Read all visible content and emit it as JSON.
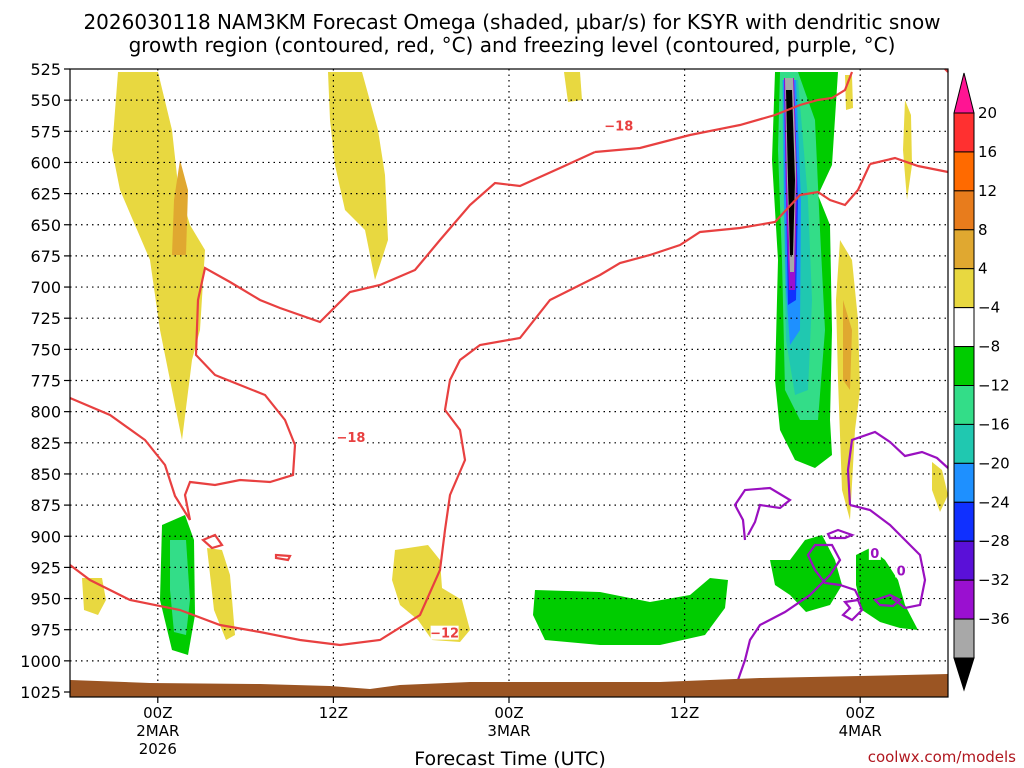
{
  "chart_data": {
    "type": "heatmap",
    "title_line1": "2026030118 NAM3KM Forecast Omega (shaded, µbar/s) for KSYR with dendritic snow",
    "title_line2": "growth region (contoured, red, °C) and freezing level (contoured, purple, °C)",
    "xlabel": "Forecast Time (UTC)",
    "ylabel": "",
    "y_levels": [
      "525",
      "550",
      "575",
      "600",
      "625",
      "650",
      "675",
      "700",
      "725",
      "750",
      "775",
      "800",
      "825",
      "850",
      "875",
      "900",
      "925",
      "950",
      "975",
      "1000",
      "1025"
    ],
    "y_range": [
      525,
      1025
    ],
    "x_ticks": [
      {
        "label": "00Z",
        "sub1": "2MAR",
        "sub2": "2026",
        "hour": 6
      },
      {
        "label": "12Z",
        "sub1": "",
        "sub2": "",
        "hour": 18
      },
      {
        "label": "00Z",
        "sub1": "3MAR",
        "sub2": "",
        "hour": 30
      },
      {
        "label": "12Z",
        "sub1": "",
        "sub2": "",
        "hour": 42
      },
      {
        "label": "00Z",
        "sub1": "4MAR",
        "sub2": "",
        "hour": 54
      }
    ],
    "x_range_hours": [
      0,
      60
    ],
    "colorbar": {
      "levels": [
        "20",
        "16",
        "12",
        "8",
        "4",
        "−4",
        "−8",
        "−12",
        "−16",
        "−20",
        "−24",
        "−28",
        "−32",
        "−36"
      ],
      "colors": [
        "#ff1493",
        "#ff3030",
        "#ff6a00",
        "#e87c1c",
        "#e0a830",
        "#e8d840",
        "#ffffff",
        "#00cc00",
        "#33dd88",
        "#20c8b0",
        "#1e90ff",
        "#1030ff",
        "#5a10d8",
        "#9a10d0",
        "#a8a8a8",
        "#000000"
      ]
    },
    "contour_labels": [
      {
        "text": "−18",
        "hour": 37.5,
        "p": 572
      },
      {
        "text": "−18",
        "hour": 19.2,
        "p": 822
      },
      {
        "text": "−12",
        "hour": 25.6,
        "p": 979
      },
      {
        "text": "0",
        "hour": 55.0,
        "p": 915
      },
      {
        "text": "0",
        "hour": 56.8,
        "p": 929
      }
    ],
    "series": [
      {
        "name": "DGZ -18C isotherm",
        "color": "#e84040"
      },
      {
        "name": "DGZ -12C isotherm",
        "color": "#e84040"
      },
      {
        "name": "Freezing level 0C",
        "color": "#9a10c0"
      },
      {
        "name": "Omega rising motion",
        "color": "#00cc00"
      },
      {
        "name": "Omega sinking motion",
        "color": "#e8d840"
      }
    ]
  },
  "credit": "coolwx.com/models"
}
